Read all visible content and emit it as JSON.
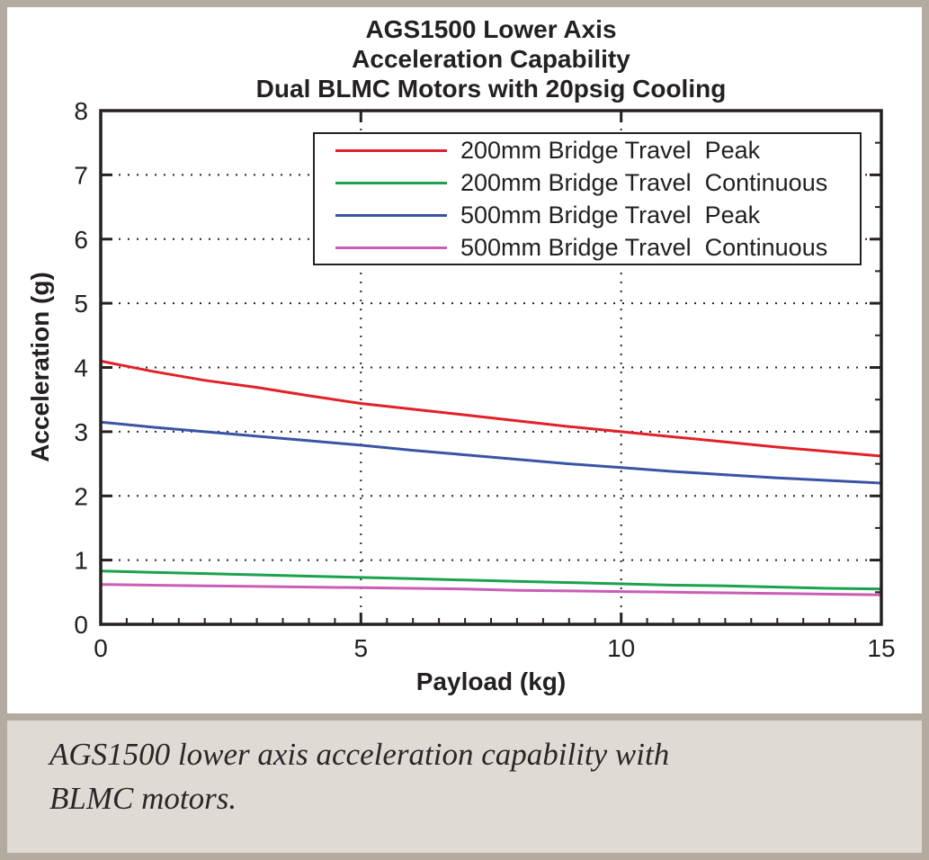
{
  "figure": {
    "title_lines": [
      "AGS1500 Lower Axis",
      "Acceleration Capability",
      "Dual BLMC Motors with 20psig Cooling"
    ],
    "caption": "AGS1500 lower axis acceleration capability with BLMC motors."
  },
  "colors": {
    "frame": "#b3aba0",
    "chart_background": "#ffffff",
    "caption_background": "#dfdbd4",
    "axis_and_text": "#241f20",
    "series_red": "#e12128",
    "series_green": "#1aa24d",
    "series_blue": "#3b53a5",
    "series_magenta": "#c95eb4"
  },
  "chart_data": {
    "type": "line",
    "title": "AGS1500 Lower Axis Acceleration Capability Dual BLMC Motors with 20psig Cooling",
    "xlabel": "Payload (kg)",
    "ylabel": "Acceleration (g)",
    "xlim": [
      0,
      15
    ],
    "ylim": [
      0,
      8
    ],
    "xticks": [
      0,
      5,
      10,
      15
    ],
    "xtick_labels": [
      "0",
      "5",
      "10",
      "15"
    ],
    "yticks": [
      0,
      1,
      2,
      3,
      4,
      5,
      6,
      7,
      8
    ],
    "ytick_labels": [
      "0",
      "1",
      "2",
      "3",
      "4",
      "5",
      "6",
      "7",
      "8"
    ],
    "x_minor_step": 0.5,
    "y_minor_step": 0.5,
    "grid": "dotted",
    "legend_position": "upper-center-inside",
    "x": [
      0,
      1,
      2,
      3,
      4,
      5,
      6,
      7,
      8,
      9,
      10,
      11,
      12,
      13,
      14,
      15
    ],
    "series": [
      {
        "label": "200mm Bridge Travel  Peak",
        "color": "#e12128",
        "drop_to_zero_at_end": true,
        "values": [
          4.1,
          3.94,
          3.8,
          3.69,
          3.56,
          3.44,
          3.35,
          3.26,
          3.17,
          3.08,
          3.0,
          2.92,
          2.84,
          2.76,
          2.69,
          2.62
        ]
      },
      {
        "label": "200mm Bridge Travel  Continuous",
        "color": "#1aa24d",
        "drop_to_zero_at_end": true,
        "values": [
          0.83,
          0.81,
          0.79,
          0.77,
          0.75,
          0.73,
          0.71,
          0.69,
          0.67,
          0.65,
          0.63,
          0.61,
          0.6,
          0.58,
          0.56,
          0.55
        ]
      },
      {
        "label": "500mm Bridge Travel  Peak",
        "color": "#3b53a5",
        "drop_to_zero_at_end": true,
        "values": [
          3.15,
          3.07,
          3.0,
          2.93,
          2.86,
          2.79,
          2.71,
          2.64,
          2.57,
          2.5,
          2.44,
          2.38,
          2.33,
          2.28,
          2.24,
          2.2
        ]
      },
      {
        "label": "500mm Bridge Travel  Continuous",
        "color": "#c95eb4",
        "drop_to_zero_at_end": true,
        "values": [
          0.62,
          0.61,
          0.6,
          0.59,
          0.58,
          0.57,
          0.56,
          0.55,
          0.53,
          0.52,
          0.51,
          0.5,
          0.49,
          0.48,
          0.47,
          0.46
        ]
      }
    ]
  }
}
